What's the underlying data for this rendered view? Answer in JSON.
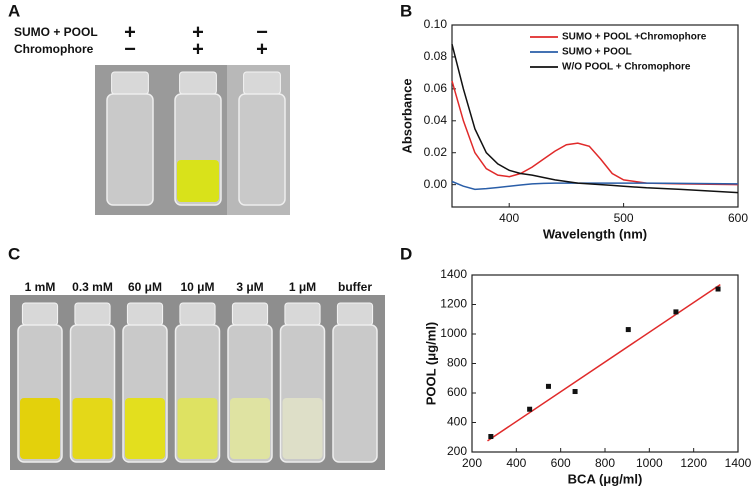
{
  "panels": {
    "A": {
      "label": "A",
      "rows": [
        {
          "label": "SUMO + POOL",
          "signs": [
            "+",
            "+",
            "−"
          ]
        },
        {
          "label": "Chromophore",
          "signs": [
            "−",
            "+",
            "+"
          ]
        }
      ]
    },
    "C": {
      "label": "C",
      "concentrations": [
        "1 mM",
        "0.3 mM",
        "60 μM",
        "10 μM",
        "3 μM",
        "1 μM",
        "buffer"
      ]
    }
  },
  "chart_data": [
    {
      "type": "line",
      "panel": "B",
      "x_label": "Wavelength (nm)",
      "y_label": "Absorbance",
      "x": [
        350,
        360,
        370,
        380,
        390,
        400,
        410,
        420,
        430,
        440,
        450,
        460,
        470,
        480,
        490,
        500,
        520,
        550,
        600
      ],
      "series": [
        {
          "name": "SUMO + POOL +Chromophore",
          "color": "#e02a2a",
          "values": [
            0.065,
            0.04,
            0.02,
            0.01,
            0.006,
            0.005,
            0.007,
            0.011,
            0.016,
            0.021,
            0.025,
            0.026,
            0.024,
            0.016,
            0.007,
            0.003,
            0.001,
            0.0005,
            0.0
          ]
        },
        {
          "name": "SUMO + POOL",
          "color": "#2a5ea8",
          "values": [
            0.002,
            -0.001,
            -0.003,
            -0.0025,
            -0.0018,
            -0.001,
            -0.0002,
            0.0005,
            0.0008,
            0.001,
            0.001,
            0.001,
            0.001,
            0.001,
            0.001,
            0.001,
            0.001,
            0.0008,
            0.0005
          ]
        },
        {
          "name": "W/O POOL + Chromophore",
          "color": "#111111",
          "values": [
            0.088,
            0.06,
            0.035,
            0.02,
            0.013,
            0.009,
            0.007,
            0.006,
            0.0045,
            0.003,
            0.002,
            0.001,
            0.0005,
            0.0,
            -0.0005,
            -0.001,
            -0.002,
            -0.003,
            -0.005
          ]
        }
      ],
      "xlim": [
        350,
        600
      ],
      "xticks": [
        400,
        500,
        600
      ],
      "ylim": [
        -0.014,
        0.1
      ],
      "yticks": [
        {
          "value": 0,
          "label": "0.00"
        },
        {
          "value": 0.02,
          "label": "0.02"
        },
        {
          "value": 0.04,
          "label": "0.04"
        },
        {
          "value": 0.06,
          "label": "0.06"
        },
        {
          "value": 0.08,
          "label": "0.08"
        },
        {
          "value": 0.1,
          "label": "0.10"
        }
      ],
      "legend": "upper right"
    },
    {
      "type": "scatter",
      "panel": "D",
      "x_label": "BCA (μg/ml)",
      "y_label": "POOL (μg/ml)",
      "points": {
        "x": [
          285,
          460,
          545,
          665,
          905,
          1120,
          1310
        ],
        "values": [
          305,
          490,
          645,
          610,
          1030,
          1150,
          1305
        ],
        "color": "#111111"
      },
      "fit": {
        "x": [
          270,
          1320
        ],
        "values": [
          275,
          1335
        ],
        "color": "#e02a2a"
      },
      "xlim": [
        200,
        1400
      ],
      "xticks": [
        200,
        400,
        600,
        800,
        1000,
        1200,
        1400
      ],
      "ylim": [
        200,
        1400
      ],
      "yticks": [
        200,
        400,
        600,
        800,
        1000,
        1200,
        1400
      ]
    }
  ]
}
